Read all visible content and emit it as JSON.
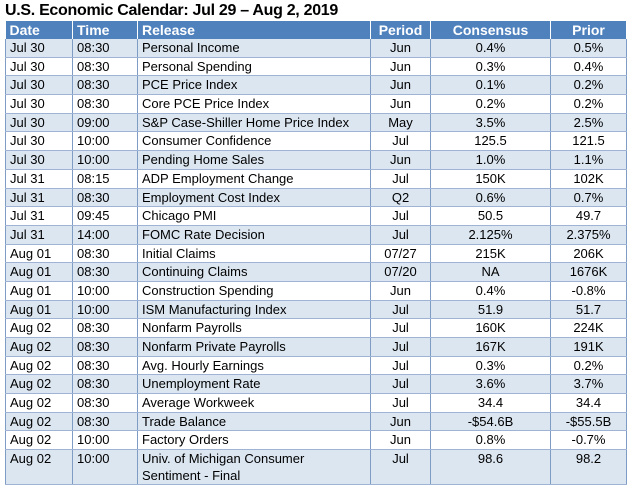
{
  "title": "U.S. Economic Calendar: Jul 29 – Aug 2, 2019",
  "headers": [
    "Date",
    "Time",
    "Release",
    "Period",
    "Consensus",
    "Prior"
  ],
  "rows": [
    [
      "Jul 30",
      "08:30",
      "Personal Income",
      "Jun",
      "0.4%",
      "0.5%"
    ],
    [
      "Jul 30",
      "08:30",
      "Personal Spending",
      "Jun",
      "0.3%",
      "0.4%"
    ],
    [
      "Jul 30",
      "08:30",
      "PCE Price Index",
      "Jun",
      "0.1%",
      "0.2%"
    ],
    [
      "Jul 30",
      "08:30",
      "Core PCE Price Index",
      "Jun",
      "0.2%",
      "0.2%"
    ],
    [
      "Jul 30",
      "09:00",
      "S&P Case-Shiller Home Price Index",
      "May",
      "3.5%",
      "2.5%"
    ],
    [
      "Jul 30",
      "10:00",
      "Consumer Confidence",
      "Jul",
      "125.5",
      "121.5"
    ],
    [
      "Jul 30",
      "10:00",
      "Pending Home Sales",
      "Jun",
      "1.0%",
      "1.1%"
    ],
    [
      "Jul 31",
      "08:15",
      "ADP Employment Change",
      "Jul",
      "150K",
      "102K"
    ],
    [
      "Jul 31",
      "08:30",
      "Employment Cost Index",
      "Q2",
      "0.6%",
      "0.7%"
    ],
    [
      "Jul 31",
      "09:45",
      "Chicago PMI",
      "Jul",
      "50.5",
      "49.7"
    ],
    [
      "Jul 31",
      "14:00",
      "FOMC Rate Decision",
      "Jul",
      "2.125%",
      "2.375%"
    ],
    [
      "Aug 01",
      "08:30",
      "Initial Claims",
      "07/27",
      "215K",
      "206K"
    ],
    [
      "Aug 01",
      "08:30",
      "Continuing Claims",
      "07/20",
      "NA",
      "1676K"
    ],
    [
      "Aug 01",
      "10:00",
      "Construction Spending",
      "Jun",
      "0.4%",
      "-0.8%"
    ],
    [
      "Aug 01",
      "10:00",
      "ISM Manufacturing Index",
      "Jul",
      "51.9",
      "51.7"
    ],
    [
      "Aug 02",
      "08:30",
      "Nonfarm Payrolls",
      "Jul",
      "160K",
      "224K"
    ],
    [
      "Aug 02",
      "08:30",
      "Nonfarm Private Payrolls",
      "Jul",
      "167K",
      "191K"
    ],
    [
      "Aug 02",
      "08:30",
      "Avg. Hourly Earnings",
      "Jul",
      "0.3%",
      "0.2%"
    ],
    [
      "Aug 02",
      "08:30",
      "Unemployment Rate",
      "Jul",
      "3.6%",
      "3.7%"
    ],
    [
      "Aug 02",
      "08:30",
      "Average Workweek",
      "Jul",
      "34.4",
      "34.4"
    ],
    [
      "Aug 02",
      "08:30",
      "Trade Balance",
      "Jun",
      "-$54.6B",
      "-$55.5B"
    ],
    [
      "Aug 02",
      "10:00",
      "Factory Orders",
      "Jun",
      "0.8%",
      "-0.7%"
    ],
    [
      "Aug 02",
      "10:00",
      "Univ. of Michigan Consumer Sentiment - Final",
      "Jul",
      "98.6",
      "98.2"
    ]
  ]
}
